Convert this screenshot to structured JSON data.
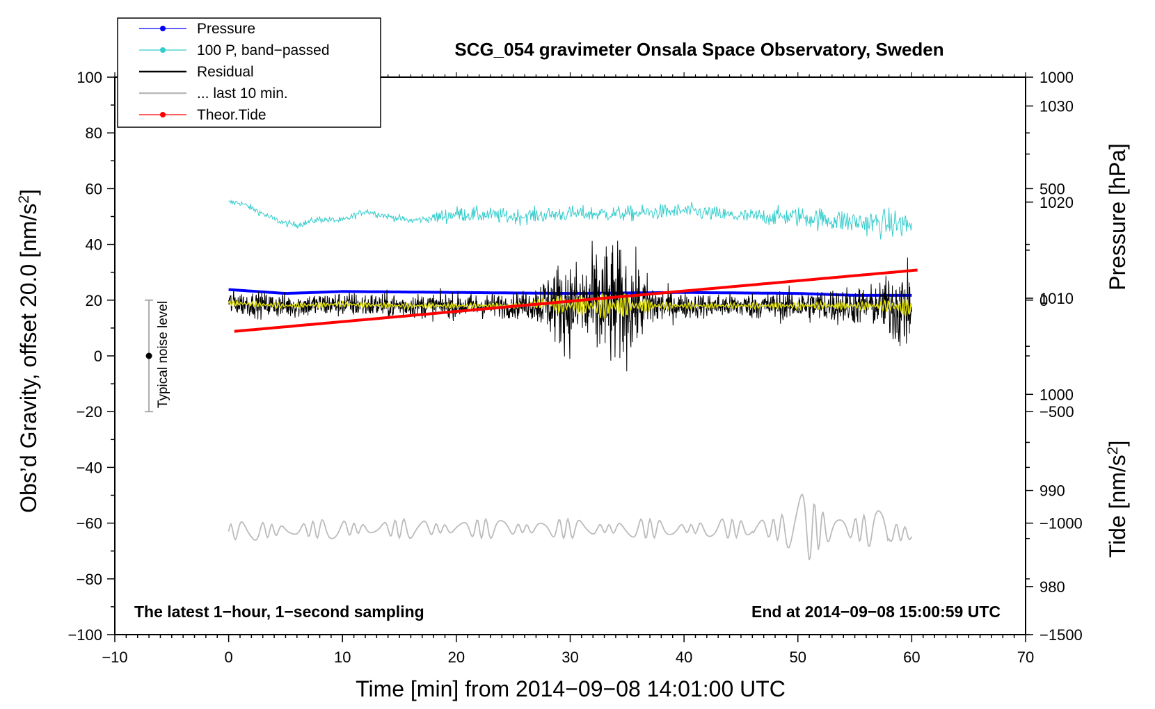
{
  "chart_data": {
    "type": "line",
    "title": "SCG_054 gravimeter Onsala Space Observatory, Sweden",
    "xlabel": "Time [min] from 2014−09−08 14:01:00 UTC",
    "ylabel_left": "Obs’d Gravity, offset 20.0 [nm/s",
    "ylabel_left_sup": "2",
    "ylabel_left_close": "]",
    "ylabel_right_pressure": "Pressure [hPa]",
    "ylabel_right_tide": "Tide [nm/s",
    "ylabel_right_tide_sup": "2",
    "ylabel_right_tide_close": "]",
    "xlim": [
      -10,
      70
    ],
    "ylim_left": [
      -100,
      100
    ],
    "ylim_right_pressure": [
      975,
      1033
    ],
    "ylim_right_tide": [
      -1500,
      1000
    ],
    "x_ticks": [
      {
        "v": -10,
        "label": "−10"
      },
      {
        "v": 0,
        "label": "0"
      },
      {
        "v": 10,
        "label": "10"
      },
      {
        "v": 20,
        "label": "20"
      },
      {
        "v": 30,
        "label": "30"
      },
      {
        "v": 40,
        "label": "40"
      },
      {
        "v": 50,
        "label": "50"
      },
      {
        "v": 60,
        "label": "60"
      },
      {
        "v": 70,
        "label": "70"
      }
    ],
    "y_ticks_left": [
      {
        "v": 100,
        "label": "100"
      },
      {
        "v": 80,
        "label": "80"
      },
      {
        "v": 60,
        "label": "60"
      },
      {
        "v": 40,
        "label": "40"
      },
      {
        "v": 20,
        "label": "20"
      },
      {
        "v": 0,
        "label": "0"
      },
      {
        "v": -20,
        "label": "−20"
      },
      {
        "v": -40,
        "label": "−40"
      },
      {
        "v": -60,
        "label": "−60"
      },
      {
        "v": -80,
        "label": "−80"
      },
      {
        "v": -100,
        "label": "−100"
      }
    ],
    "y_ticks_pressure": [
      {
        "v": 1030,
        "label": "1030"
      },
      {
        "v": 1020,
        "label": "1020"
      },
      {
        "v": 1010,
        "label": "1010"
      },
      {
        "v": 1000,
        "label": "1000"
      },
      {
        "v": 990,
        "label": "990"
      },
      {
        "v": 980,
        "label": "980"
      }
    ],
    "y_ticks_tide": [
      {
        "v": 1000,
        "label": "1000"
      },
      {
        "v": 500,
        "label": "500"
      },
      {
        "v": 0,
        "label": "0"
      },
      {
        "v": -500,
        "label": "−500"
      },
      {
        "v": -1000,
        "label": "−1000"
      },
      {
        "v": -1500,
        "label": "−1500"
      }
    ],
    "series": [
      {
        "name": "Pressure",
        "axis": "pressure",
        "color": "#0000ff",
        "x": [
          0,
          5,
          10,
          20,
          30,
          40,
          50,
          55,
          60
        ],
        "y": [
          1010.9,
          1010.5,
          1010.7,
          1010.6,
          1010.5,
          1010.6,
          1010.5,
          1010.3,
          1010.3
        ]
      },
      {
        "name": "100 P, band−passed",
        "axis": "left",
        "color": "#33cccc",
        "x": [
          0,
          1,
          2,
          3,
          4,
          5,
          6,
          8,
          10,
          12,
          14,
          16,
          18,
          20,
          25,
          30,
          35,
          40,
          45,
          50,
          55,
          60
        ],
        "y": [
          55,
          55,
          53,
          51,
          49,
          47.5,
          47,
          49,
          48.5,
          52,
          50,
          48.5,
          49.5,
          51,
          50,
          51,
          51,
          52,
          50,
          50,
          48,
          47
        ]
      },
      {
        "name": "Residual",
        "axis": "left",
        "color": "#000000",
        "x": [
          0,
          5,
          10,
          15,
          20,
          25,
          28,
          30,
          32,
          33,
          34,
          35,
          38,
          40,
          45,
          50,
          55,
          58,
          60
        ],
        "y": [
          19,
          18,
          18.5,
          18,
          18,
          18,
          19,
          18,
          18,
          18,
          18,
          18,
          18,
          18,
          18,
          18,
          18,
          18,
          17
        ]
      },
      {
        "name": "... last 10 min.",
        "axis": "left",
        "color": "#bbbbbb",
        "x": [
          0,
          10,
          20,
          30,
          40,
          45,
          50,
          55,
          60
        ],
        "y": [
          -63,
          -62,
          -62,
          -62,
          -62,
          -62,
          -62,
          -62,
          -64
        ]
      },
      {
        "name": "Theor.Tide",
        "axis": "tide",
        "color": "#ff0000",
        "x": [
          0.5,
          60.5
        ],
        "y": [
          -140,
          135
        ]
      }
    ],
    "legend": [
      {
        "label": "Pressure",
        "color": "#0000ff",
        "marker": true
      },
      {
        "label": "100 P, band−passed",
        "color": "#33cccc",
        "marker": true
      },
      {
        "label": "Residual",
        "color": "#000000",
        "marker": false
      },
      {
        "label": "... last 10 min.",
        "color": "#bbbbbb",
        "marker": false
      },
      {
        "label": "Theor.Tide",
        "color": "#ff0000",
        "marker": true
      }
    ],
    "legend_position": "top-left",
    "annotations": {
      "left": "The latest 1−hour, 1−second sampling",
      "right": "End at 2014−09−08 15:00:59 UTC"
    },
    "noise_bar": {
      "label": "Typical noise level",
      "x": -7,
      "y_low": -20,
      "y_high": 20,
      "center": 0
    }
  }
}
